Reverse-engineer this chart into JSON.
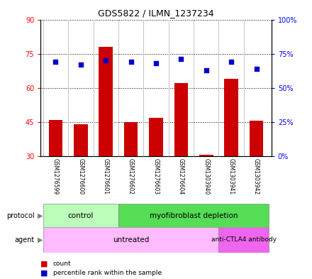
{
  "title": "GDS5822 / ILMN_1237234",
  "samples": [
    "GSM1276599",
    "GSM1276600",
    "GSM1276601",
    "GSM1276602",
    "GSM1276603",
    "GSM1276604",
    "GSM1303940",
    "GSM1303941",
    "GSM1303942"
  ],
  "counts": [
    46,
    44,
    78,
    45,
    47,
    62,
    30.5,
    64,
    45.5
  ],
  "percentiles": [
    69,
    67,
    70,
    69,
    68,
    71,
    63,
    69,
    64
  ],
  "ylim_left": [
    30,
    90
  ],
  "ylim_right": [
    0,
    100
  ],
  "yticks_left": [
    30,
    45,
    60,
    75,
    90
  ],
  "yticks_right": [
    0,
    25,
    50,
    75,
    100
  ],
  "bar_color": "#cc0000",
  "dot_color": "#0000cc",
  "protocol_control_color": "#bbffbb",
  "protocol_myofib_color": "#55dd55",
  "agent_untreated_color": "#ffbbff",
  "agent_antibody_color": "#ee66ee",
  "bg_color": "#ffffff",
  "plot_bg_color": "#ffffff",
  "tick_label_area_color": "#cccccc",
  "n_control": 3,
  "n_untreated": 7
}
